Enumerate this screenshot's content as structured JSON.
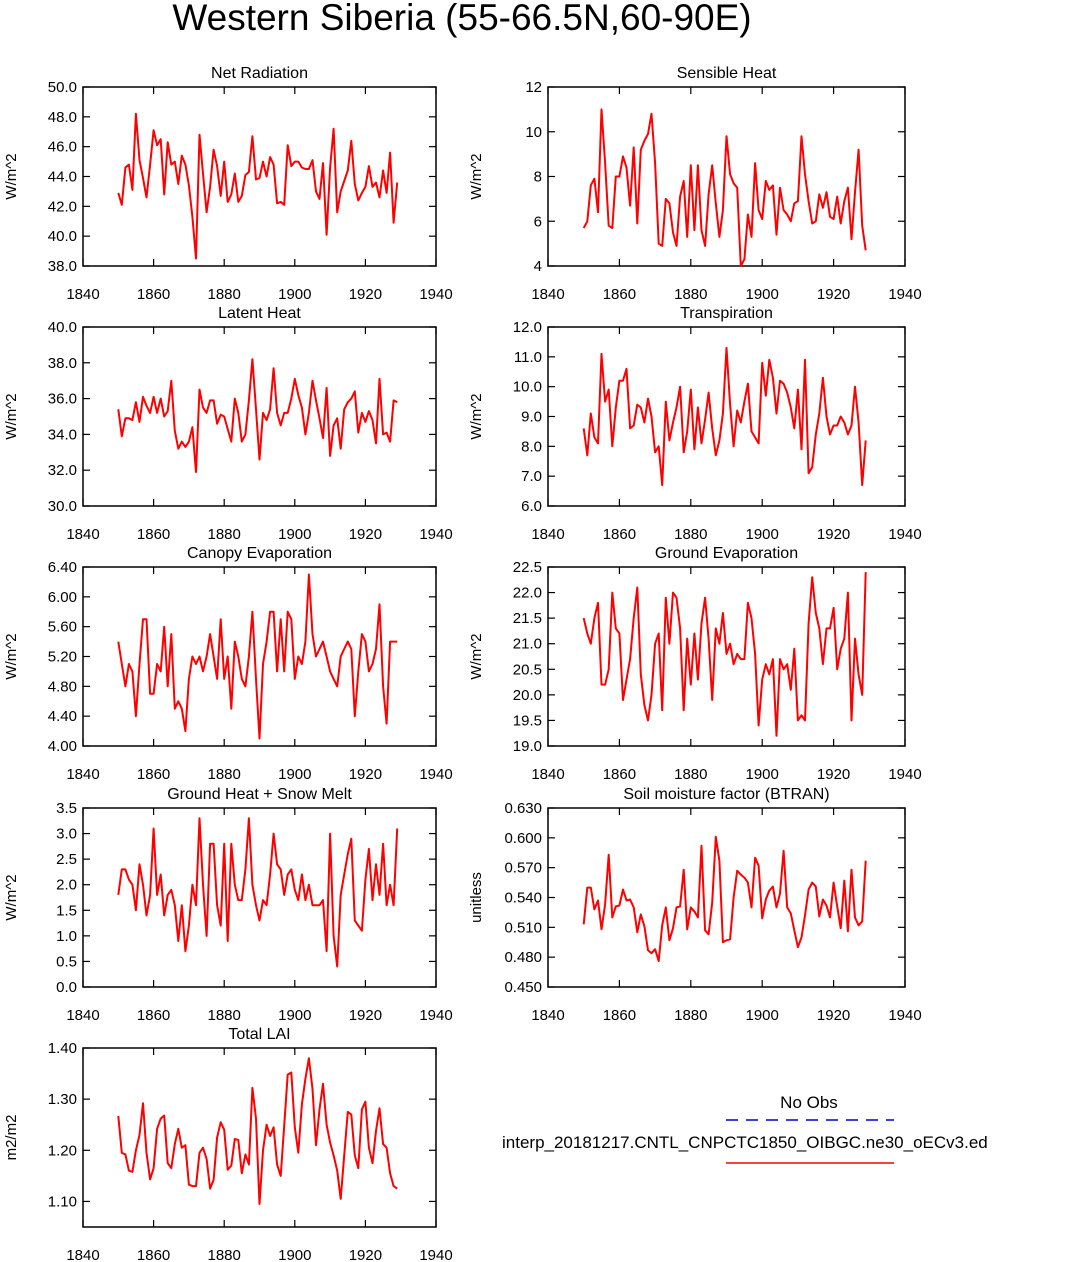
{
  "title": "Western Siberia (55-66.5N,60-90E)",
  "colors": {
    "model_line": "#ff0000",
    "obs_line": "#0000cc"
  },
  "legend": {
    "obs_label": "No Obs",
    "model_label": "interp_20181217.CNTL_CNPCTC1850_OIBGC.ne30_oECv3.ed"
  },
  "chart_data": [
    {
      "type": "line",
      "title": "Net Radiation",
      "ylabel": "W/m^2",
      "xlim": [
        1840,
        1940
      ],
      "xticks": [
        1840,
        1860,
        1880,
        1900,
        1920,
        1940
      ],
      "xtick_labels": [
        "1840",
        "1860",
        "1880",
        "1900",
        "1920",
        "1940"
      ],
      "ylim": [
        38,
        50
      ],
      "yticks": [
        38,
        40,
        42,
        44,
        46,
        48,
        50
      ],
      "ytick_labels": [
        "38.0",
        "40.0",
        "42.0",
        "44.0",
        "46.0",
        "48.0",
        "50.0"
      ],
      "x_start": 1850,
      "values": [
        42.9,
        42.1,
        44.6,
        44.8,
        43.1,
        48.2,
        45.1,
        43.9,
        42.6,
        44.8,
        47.1,
        46.1,
        46.5,
        42.8,
        46.3,
        44.8,
        45.0,
        43.5,
        45.4,
        44.8,
        43.4,
        41.3,
        38.5,
        46.8,
        44.2,
        41.6,
        43.3,
        45.8,
        44.7,
        42.7,
        45.0,
        42.3,
        42.8,
        44.2,
        42.3,
        42.7,
        44.1,
        44.3,
        46.7,
        43.8,
        43.9,
        45.0,
        44.0,
        45.3,
        44.8,
        42.2,
        42.3,
        42.1,
        46.1,
        44.7,
        45.0,
        45.0,
        44.6,
        44.5,
        44.5,
        45.1,
        43.0,
        42.5,
        44.9,
        40.1,
        44.6,
        47.2,
        41.6,
        43.0,
        43.7,
        44.4,
        46.4,
        43.5,
        42.4,
        42.9,
        43.3,
        44.7,
        43.3,
        43.6,
        42.6,
        44.4,
        42.9,
        45.6,
        40.9,
        43.6
      ]
    },
    {
      "type": "line",
      "title": "Sensible Heat",
      "ylabel": "W/m^2",
      "xlim": [
        1840,
        1940
      ],
      "xticks": [
        1840,
        1860,
        1880,
        1900,
        1920,
        1940
      ],
      "xtick_labels": [
        "1840",
        "1860",
        "1880",
        "1900",
        "1920",
        "1940"
      ],
      "ylim": [
        4,
        12
      ],
      "yticks": [
        4,
        6,
        8,
        10,
        12
      ],
      "ytick_labels": [
        "4",
        "6",
        "8",
        "10",
        "12"
      ],
      "x_start": 1850,
      "values": [
        5.7,
        6.0,
        7.6,
        7.9,
        6.4,
        11.0,
        8.6,
        5.8,
        5.7,
        8.0,
        8.0,
        8.9,
        8.4,
        6.7,
        9.3,
        5.9,
        9.2,
        9.6,
        9.9,
        10.8,
        8.6,
        5.0,
        4.9,
        7.0,
        6.8,
        5.5,
        4.9,
        7.1,
        7.8,
        5.3,
        8.5,
        5.6,
        8.5,
        5.6,
        4.9,
        7.2,
        8.5,
        6.8,
        5.3,
        6.5,
        9.8,
        8.1,
        7.7,
        7.5,
        4.0,
        4.3,
        6.3,
        5.3,
        8.6,
        6.5,
        6.1,
        7.8,
        7.4,
        7.6,
        5.4,
        7.5,
        6.5,
        6.3,
        6.0,
        6.8,
        6.9,
        9.8,
        8.1,
        6.9,
        5.9,
        6.0,
        7.2,
        6.6,
        7.3,
        6.2,
        6.1,
        7.1,
        5.9,
        6.9,
        7.5,
        5.2,
        7.3,
        9.2,
        5.8,
        4.7
      ]
    },
    {
      "type": "line",
      "title": "Latent Heat",
      "ylabel": "W/m^2",
      "xlim": [
        1840,
        1940
      ],
      "xticks": [
        1840,
        1860,
        1880,
        1900,
        1920,
        1940
      ],
      "xtick_labels": [
        "1840",
        "1860",
        "1880",
        "1900",
        "1920",
        "1940"
      ],
      "ylim": [
        30,
        40
      ],
      "yticks": [
        30,
        32,
        34,
        36,
        38,
        40
      ],
      "ytick_labels": [
        "30.0",
        "32.0",
        "34.0",
        "36.0",
        "38.0",
        "40.0"
      ],
      "x_start": 1850,
      "values": [
        35.4,
        33.9,
        34.9,
        34.9,
        34.8,
        35.8,
        34.7,
        36.1,
        35.6,
        35.2,
        36.1,
        35.2,
        36.0,
        35.0,
        35.3,
        37.0,
        34.2,
        33.2,
        33.6,
        33.3,
        33.6,
        34.4,
        31.9,
        36.5,
        35.5,
        35.2,
        35.9,
        35.9,
        34.6,
        35.1,
        35.0,
        34.3,
        33.6,
        36.0,
        35.2,
        33.6,
        34.0,
        35.9,
        38.2,
        35.4,
        32.6,
        35.2,
        34.8,
        35.4,
        37.7,
        35.2,
        34.5,
        35.2,
        35.2,
        36.0,
        37.1,
        36.2,
        35.5,
        34.0,
        35.2,
        37.0,
        35.9,
        34.9,
        33.8,
        36.6,
        32.8,
        34.5,
        34.9,
        33.2,
        35.4,
        35.8,
        36.0,
        36.4,
        34.1,
        35.2,
        34.7,
        35.3,
        34.8,
        33.5,
        37.1,
        34.0,
        34.1,
        33.6,
        35.9,
        35.8
      ]
    },
    {
      "type": "line",
      "title": "Transpiration",
      "ylabel": "W/m^2",
      "xlim": [
        1840,
        1940
      ],
      "xticks": [
        1840,
        1860,
        1880,
        1900,
        1920,
        1940
      ],
      "xtick_labels": [
        "1840",
        "1860",
        "1880",
        "1900",
        "1920",
        "1940"
      ],
      "ylim": [
        6,
        12
      ],
      "yticks": [
        6,
        7,
        8,
        9,
        10,
        11,
        12
      ],
      "ytick_labels": [
        "6.0",
        "7.0",
        "8.0",
        "9.0",
        "10.0",
        "11.0",
        "12.0"
      ],
      "x_start": 1850,
      "values": [
        8.6,
        7.7,
        9.1,
        8.3,
        8.1,
        11.1,
        9.5,
        9.9,
        8.0,
        9.3,
        10.2,
        10.2,
        10.6,
        8.6,
        8.7,
        9.4,
        9.3,
        8.8,
        9.6,
        9.0,
        7.8,
        8.0,
        6.7,
        9.5,
        8.2,
        8.8,
        9.3,
        10.0,
        7.8,
        8.5,
        9.9,
        7.9,
        9.3,
        8.1,
        8.9,
        9.8,
        8.6,
        7.7,
        8.2,
        9.1,
        11.3,
        9.4,
        8.0,
        9.2,
        8.8,
        9.5,
        10.1,
        8.5,
        8.3,
        8.1,
        10.8,
        9.7,
        10.9,
        10.3,
        9.1,
        10.2,
        10.1,
        9.8,
        9.3,
        8.6,
        9.9,
        7.9,
        10.9,
        7.1,
        7.3,
        8.4,
        9.1,
        10.3,
        9.0,
        8.4,
        8.7,
        8.7,
        9.0,
        8.8,
        8.4,
        8.7,
        10.0,
        8.8,
        6.7,
        8.2
      ]
    },
    {
      "type": "line",
      "title": "Canopy Evaporation",
      "ylabel": "W/m^2",
      "xlim": [
        1840,
        1940
      ],
      "xticks": [
        1840,
        1860,
        1880,
        1900,
        1920,
        1940
      ],
      "xtick_labels": [
        "1840",
        "1860",
        "1880",
        "1900",
        "1920",
        "1940"
      ],
      "ylim": [
        4.0,
        6.4
      ],
      "yticks": [
        4.0,
        4.4,
        4.8,
        5.2,
        5.6,
        6.0,
        6.4
      ],
      "ytick_labels": [
        "4.00",
        "4.40",
        "4.80",
        "5.20",
        "5.60",
        "6.00",
        "6.40"
      ],
      "x_start": 1850,
      "values": [
        5.4,
        5.1,
        4.8,
        5.1,
        5.0,
        4.4,
        5.1,
        5.7,
        5.7,
        4.7,
        4.7,
        5.1,
        5.0,
        5.6,
        4.8,
        5.5,
        4.5,
        4.6,
        4.5,
        4.2,
        4.9,
        5.2,
        5.1,
        5.2,
        5.0,
        5.2,
        5.5,
        5.2,
        4.9,
        5.7,
        4.9,
        5.2,
        4.5,
        5.4,
        5.2,
        4.9,
        4.8,
        5.2,
        5.8,
        4.9,
        4.1,
        5.1,
        5.4,
        5.8,
        5.8,
        5.0,
        5.7,
        5.0,
        5.8,
        5.7,
        4.9,
        5.2,
        5.1,
        5.4,
        6.3,
        5.5,
        5.2,
        5.3,
        5.4,
        5.2,
        5.0,
        4.9,
        4.8,
        5.2,
        5.3,
        5.4,
        5.3,
        4.4,
        5.0,
        5.5,
        5.4,
        5.0,
        5.1,
        5.3,
        5.9,
        4.8,
        4.3,
        5.4,
        5.4,
        5.4
      ]
    },
    {
      "type": "line",
      "title": "Ground Evaporation",
      "ylabel": "W/m^2",
      "xlim": [
        1840,
        1940
      ],
      "xticks": [
        1840,
        1860,
        1880,
        1900,
        1920,
        1940
      ],
      "xtick_labels": [
        "1840",
        "1860",
        "1880",
        "1900",
        "1920",
        "1940"
      ],
      "ylim": [
        19.0,
        22.5
      ],
      "yticks": [
        19.0,
        19.5,
        20.0,
        20.5,
        21.0,
        21.5,
        22.0,
        22.5
      ],
      "ytick_labels": [
        "19.0",
        "19.5",
        "20.0",
        "20.5",
        "21.0",
        "21.5",
        "22.0",
        "22.5"
      ],
      "x_start": 1850,
      "values": [
        21.5,
        21.2,
        21.0,
        21.5,
        21.8,
        20.2,
        20.2,
        20.5,
        22.0,
        21.3,
        21.2,
        19.9,
        20.3,
        20.7,
        21.5,
        22.1,
        20.4,
        19.8,
        19.5,
        20.0,
        21.0,
        21.2,
        19.7,
        21.9,
        21.0,
        22.0,
        21.9,
        21.3,
        19.7,
        21.1,
        20.2,
        21.2,
        20.3,
        21.4,
        21.9,
        21.1,
        19.9,
        21.3,
        21.0,
        21.6,
        20.8,
        21.0,
        20.6,
        20.8,
        20.7,
        20.7,
        21.8,
        21.5,
        20.8,
        19.4,
        20.3,
        20.6,
        20.4,
        20.7,
        19.2,
        20.7,
        20.5,
        20.6,
        20.1,
        20.9,
        19.5,
        19.6,
        19.5,
        21.4,
        22.3,
        21.6,
        21.3,
        20.6,
        21.3,
        21.3,
        21.7,
        20.5,
        20.9,
        21.1,
        22.0,
        19.5,
        21.1,
        20.4,
        20.0,
        22.4
      ]
    },
    {
      "type": "line",
      "title": "Ground Heat + Snow Melt",
      "ylabel": "W/m^2",
      "xlim": [
        1840,
        1940
      ],
      "xticks": [
        1840,
        1860,
        1880,
        1900,
        1920,
        1940
      ],
      "xtick_labels": [
        "1840",
        "1860",
        "1880",
        "1900",
        "1920",
        "1940"
      ],
      "ylim": [
        0.0,
        3.5
      ],
      "yticks": [
        0.0,
        0.5,
        1.0,
        1.5,
        2.0,
        2.5,
        3.0,
        3.5
      ],
      "ytick_labels": [
        "0.0",
        "0.5",
        "1.0",
        "1.5",
        "2.0",
        "2.5",
        "3.0",
        "3.5"
      ],
      "x_start": 1850,
      "values": [
        1.8,
        2.3,
        2.3,
        2.1,
        2.0,
        1.5,
        2.4,
        2.0,
        1.4,
        1.8,
        3.1,
        1.8,
        2.2,
        1.4,
        1.8,
        1.9,
        1.6,
        0.9,
        1.6,
        0.7,
        1.2,
        2.0,
        1.6,
        3.3,
        2.0,
        1.0,
        2.8,
        2.8,
        1.6,
        1.2,
        2.8,
        0.9,
        2.8,
        2.0,
        1.7,
        1.7,
        2.3,
        3.3,
        2.0,
        1.6,
        1.3,
        1.7,
        1.6,
        2.2,
        3.0,
        2.4,
        2.3,
        1.8,
        2.2,
        2.3,
        1.9,
        1.7,
        2.2,
        1.7,
        2.0,
        1.6,
        1.6,
        1.6,
        1.7,
        0.7,
        3.0,
        1.0,
        0.4,
        1.8,
        2.2,
        2.6,
        2.9,
        1.3,
        1.2,
        1.1,
        2.1,
        2.7,
        1.7,
        2.4,
        1.8,
        2.8,
        1.6,
        2.0,
        1.6,
        3.1
      ]
    },
    {
      "type": "line",
      "title": "Soil moisture factor (BTRAN)",
      "ylabel": "unitless",
      "xlim": [
        1840,
        1940
      ],
      "xticks": [
        1840,
        1860,
        1880,
        1900,
        1920,
        1940
      ],
      "xtick_labels": [
        "1840",
        "1860",
        "1880",
        "1900",
        "1920",
        "1940"
      ],
      "ylim": [
        0.45,
        0.63
      ],
      "yticks": [
        0.45,
        0.48,
        0.51,
        0.54,
        0.57,
        0.6,
        0.63
      ],
      "ytick_labels": [
        "0.450",
        "0.480",
        "0.510",
        "0.540",
        "0.570",
        "0.600",
        "0.630"
      ],
      "x_start": 1850,
      "values": [
        0.513,
        0.55,
        0.55,
        0.528,
        0.537,
        0.508,
        0.533,
        0.583,
        0.52,
        0.531,
        0.532,
        0.548,
        0.537,
        0.538,
        0.53,
        0.505,
        0.523,
        0.511,
        0.487,
        0.484,
        0.488,
        0.476,
        0.512,
        0.53,
        0.497,
        0.509,
        0.53,
        0.531,
        0.568,
        0.508,
        0.53,
        0.526,
        0.52,
        0.592,
        0.507,
        0.503,
        0.535,
        0.601,
        0.577,
        0.495,
        0.497,
        0.498,
        0.54,
        0.567,
        0.563,
        0.56,
        0.555,
        0.53,
        0.58,
        0.572,
        0.519,
        0.538,
        0.547,
        0.551,
        0.53,
        0.544,
        0.587,
        0.53,
        0.524,
        0.507,
        0.49,
        0.5,
        0.522,
        0.548,
        0.555,
        0.551,
        0.521,
        0.538,
        0.532,
        0.52,
        0.555,
        0.531,
        0.509,
        0.557,
        0.506,
        0.568,
        0.52,
        0.512,
        0.516,
        0.577
      ]
    },
    {
      "type": "line",
      "title": "Total LAI",
      "ylabel": "m2/m2",
      "xlim": [
        1840,
        1940
      ],
      "xticks": [
        1840,
        1860,
        1880,
        1900,
        1920,
        1940
      ],
      "xtick_labels": [
        "1840",
        "1860",
        "1880",
        "1900",
        "1920",
        "1940"
      ],
      "ylim": [
        1.05,
        1.4
      ],
      "yticks": [
        1.1,
        1.2,
        1.3,
        1.4
      ],
      "ytick_labels": [
        "1.10",
        "1.20",
        "1.30",
        "1.40"
      ],
      "x_start": 1850,
      "values": [
        1.267,
        1.195,
        1.192,
        1.16,
        1.158,
        1.2,
        1.23,
        1.292,
        1.195,
        1.143,
        1.165,
        1.242,
        1.262,
        1.268,
        1.175,
        1.165,
        1.212,
        1.242,
        1.205,
        1.21,
        1.133,
        1.13,
        1.13,
        1.195,
        1.205,
        1.183,
        1.125,
        1.142,
        1.225,
        1.255,
        1.24,
        1.162,
        1.17,
        1.222,
        1.22,
        1.155,
        1.192,
        1.172,
        1.322,
        1.262,
        1.095,
        1.2,
        1.25,
        1.228,
        1.245,
        1.172,
        1.15,
        1.248,
        1.348,
        1.352,
        1.245,
        1.195,
        1.29,
        1.34,
        1.38,
        1.32,
        1.21,
        1.28,
        1.33,
        1.25,
        1.215,
        1.19,
        1.16,
        1.105,
        1.19,
        1.275,
        1.27,
        1.19,
        1.165,
        1.28,
        1.295,
        1.205,
        1.175,
        1.238,
        1.282,
        1.212,
        1.205,
        1.155,
        1.13,
        1.125
      ]
    }
  ]
}
